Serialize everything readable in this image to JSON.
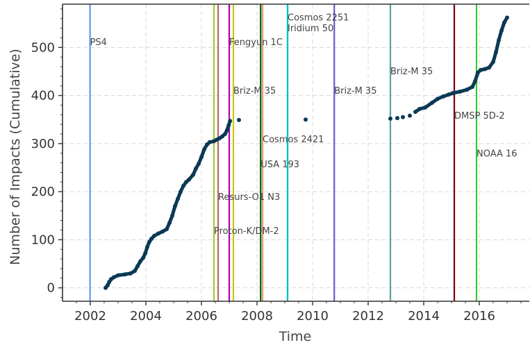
{
  "chart_data": {
    "type": "scatter",
    "title": "",
    "xlabel": "Time",
    "ylabel": "Number of Impacts (Cumulative)",
    "xlim": [
      2001.0,
      2017.8
    ],
    "ylim": [
      -28,
      590
    ],
    "x_ticks": [
      2002,
      2004,
      2006,
      2008,
      2010,
      2012,
      2014,
      2016
    ],
    "y_ticks": [
      0,
      100,
      200,
      300,
      400,
      500
    ],
    "grid": true,
    "marker_color": "#0b3954",
    "series": [
      {
        "name": "",
        "points": [
          [
            2002.55,
            0
          ],
          [
            2002.62,
            5
          ],
          [
            2002.68,
            12
          ],
          [
            2002.75,
            18
          ],
          [
            2002.85,
            22
          ],
          [
            2003.0,
            26
          ],
          [
            2003.25,
            28
          ],
          [
            2003.45,
            30
          ],
          [
            2003.6,
            35
          ],
          [
            2003.7,
            45
          ],
          [
            2003.8,
            55
          ],
          [
            2003.9,
            62
          ],
          [
            2003.98,
            72
          ],
          [
            2004.05,
            85
          ],
          [
            2004.12,
            95
          ],
          [
            2004.2,
            102
          ],
          [
            2004.3,
            108
          ],
          [
            2004.45,
            113
          ],
          [
            2004.6,
            117
          ],
          [
            2004.75,
            122
          ],
          [
            2004.85,
            135
          ],
          [
            2004.95,
            150
          ],
          [
            2005.05,
            170
          ],
          [
            2005.15,
            185
          ],
          [
            2005.25,
            200
          ],
          [
            2005.35,
            212
          ],
          [
            2005.45,
            220
          ],
          [
            2005.55,
            225
          ],
          [
            2005.7,
            235
          ],
          [
            2005.8,
            248
          ],
          [
            2005.9,
            258
          ],
          [
            2006.0,
            272
          ],
          [
            2006.1,
            288
          ],
          [
            2006.2,
            298
          ],
          [
            2006.3,
            303
          ],
          [
            2006.45,
            305
          ],
          [
            2006.55,
            308
          ],
          [
            2006.65,
            311
          ],
          [
            2006.75,
            315
          ],
          [
            2006.85,
            320
          ],
          [
            2006.92,
            328
          ],
          [
            2006.98,
            338
          ],
          [
            2007.03,
            347
          ],
          [
            2007.35,
            349
          ],
          [
            2009.75,
            350
          ],
          [
            2012.8,
            352
          ],
          [
            2013.05,
            353
          ],
          [
            2013.25,
            355
          ],
          [
            2013.5,
            358
          ],
          [
            2013.7,
            366
          ],
          [
            2013.85,
            372
          ],
          [
            2014.05,
            375
          ],
          [
            2014.3,
            385
          ],
          [
            2014.5,
            393
          ],
          [
            2014.7,
            398
          ],
          [
            2014.9,
            402
          ],
          [
            2015.05,
            405
          ],
          [
            2015.3,
            408
          ],
          [
            2015.55,
            412
          ],
          [
            2015.75,
            418
          ],
          [
            2015.85,
            430
          ],
          [
            2015.95,
            448
          ],
          [
            2016.05,
            453
          ],
          [
            2016.2,
            455
          ],
          [
            2016.35,
            458
          ],
          [
            2016.5,
            470
          ],
          [
            2016.6,
            490
          ],
          [
            2016.7,
            515
          ],
          [
            2016.8,
            535
          ],
          [
            2016.9,
            552
          ],
          [
            2017.0,
            562
          ]
        ]
      }
    ],
    "events": [
      {
        "label": "PS4",
        "x": 2001.99,
        "label_y": 505,
        "anchor": "start",
        "color": "#6495ed"
      },
      {
        "label": "Proton-K/DM-2",
        "x": 2006.45,
        "label_y": 112,
        "anchor": "start",
        "color": "#9acd32"
      },
      {
        "label": "Resurs-O1 N3",
        "x": 2006.6,
        "label_y": 183,
        "anchor": "start",
        "color": "#c06070"
      },
      {
        "label": "Fengyun 1C",
        "x": 2007.0,
        "label_y": 505,
        "anchor": "start",
        "color": "#b000b0"
      },
      {
        "label": "Briz-M 35",
        "x": 2007.15,
        "label_y": 404,
        "anchor": "start",
        "color": "#c8c800"
      },
      {
        "label": "USA 193",
        "x": 2008.13,
        "label_y": 251,
        "anchor": "start",
        "color": "#006400"
      },
      {
        "label": "Cosmos 2421",
        "x": 2008.2,
        "label_y": 303,
        "anchor": "start",
        "color": "#e9967a"
      },
      {
        "label": "Cosmos 2251",
        "x": 2009.1,
        "label_y": 556,
        "anchor": "start",
        "color": "#00bfbf"
      },
      {
        "label": "Iridium 50",
        "x": 2009.1,
        "label_y": 534,
        "anchor": "start",
        "color": "#00bfbf"
      },
      {
        "label": "Briz-M 35",
        "x": 2010.78,
        "label_y": 404,
        "anchor": "start",
        "color": "#6a5acd"
      },
      {
        "label": "Briz-M 35",
        "x": 2012.8,
        "label_y": 444,
        "anchor": "start",
        "color": "#5f9ea0"
      },
      {
        "label": "DMSP 5D-2",
        "x": 2015.1,
        "label_y": 352,
        "anchor": "start",
        "color": "#800000"
      },
      {
        "label": "NOAA 16",
        "x": 2015.9,
        "label_y": 273,
        "anchor": "start",
        "color": "#32cd32"
      }
    ]
  }
}
